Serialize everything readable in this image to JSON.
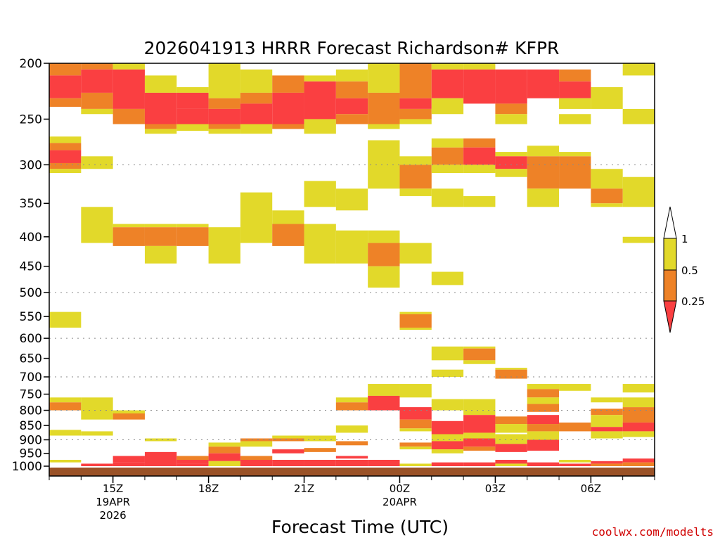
{
  "chart_data": {
    "type": "heatmap",
    "title": "2026041913 HRRR Forecast Richardson# KFPR",
    "xlabel": "Forecast Time (UTC)",
    "ylabel": "",
    "credit": "coolwx.com/modelts",
    "hours": 19,
    "x_ticks": [
      {
        "hour": 2,
        "labels": [
          "15Z",
          "19APR",
          "2026"
        ]
      },
      {
        "hour": 5,
        "labels": [
          "18Z"
        ]
      },
      {
        "hour": 8,
        "labels": [
          "21Z"
        ]
      },
      {
        "hour": 11,
        "labels": [
          "00Z",
          "20APR"
        ]
      },
      {
        "hour": 14,
        "labels": [
          "03Z"
        ]
      },
      {
        "hour": 17,
        "labels": [
          "06Z"
        ]
      }
    ],
    "y_ticks": [
      200,
      250,
      300,
      350,
      400,
      450,
      500,
      550,
      600,
      650,
      700,
      750,
      800,
      850,
      900,
      950,
      1000
    ],
    "gridlines": [
      300,
      500,
      600,
      700,
      800,
      900
    ],
    "ylim": [
      200,
      1025
    ],
    "colorbar": {
      "labels": [
        "1",
        "0.5",
        "0.25"
      ],
      "colors": {
        "yellow": "#e2d92a",
        "orange": "#ee8227",
        "red": "#fa3f41",
        "ground": "#9a5227"
      }
    },
    "columns": [
      [
        [
          200,
          210,
          "o"
        ],
        [
          210,
          230,
          "r"
        ],
        [
          230,
          238,
          "o"
        ],
        [
          268,
          275,
          "y"
        ],
        [
          275,
          283,
          "o"
        ],
        [
          283,
          298,
          "r"
        ],
        [
          298,
          305,
          "o"
        ],
        [
          305,
          310,
          "y"
        ],
        [
          540,
          575,
          "y"
        ],
        [
          760,
          775,
          "y"
        ],
        [
          775,
          800,
          "o"
        ],
        [
          865,
          885,
          "y"
        ],
        [
          975,
          985,
          "y"
        ]
      ],
      [
        [
          200,
          205,
          "o"
        ],
        [
          205,
          225,
          "r"
        ],
        [
          225,
          240,
          "o"
        ],
        [
          240,
          245,
          "y"
        ],
        [
          290,
          305,
          "y"
        ],
        [
          355,
          410,
          "y"
        ],
        [
          760,
          830,
          "y"
        ],
        [
          870,
          885,
          "y"
        ],
        [
          990,
          1000,
          "r"
        ]
      ],
      [
        [
          200,
          205,
          "y"
        ],
        [
          205,
          240,
          "r"
        ],
        [
          240,
          255,
          "o"
        ],
        [
          380,
          385,
          "y"
        ],
        [
          385,
          415,
          "o"
        ],
        [
          800,
          810,
          "y"
        ],
        [
          810,
          830,
          "o"
        ],
        [
          960,
          985,
          "r"
        ],
        [
          985,
          1000,
          "r"
        ]
      ],
      [
        [
          210,
          225,
          "y"
        ],
        [
          225,
          255,
          "r"
        ],
        [
          255,
          260,
          "o"
        ],
        [
          260,
          265,
          "y"
        ],
        [
          380,
          385,
          "y"
        ],
        [
          385,
          415,
          "o"
        ],
        [
          415,
          445,
          "y"
        ],
        [
          895,
          905,
          "y"
        ],
        [
          945,
          1000,
          "r"
        ]
      ],
      [
        [
          220,
          225,
          "y"
        ],
        [
          225,
          240,
          "r"
        ],
        [
          240,
          255,
          "r"
        ],
        [
          255,
          262,
          "y"
        ],
        [
          380,
          385,
          "y"
        ],
        [
          385,
          415,
          "o"
        ],
        [
          960,
          975,
          "o"
        ],
        [
          975,
          990,
          "r"
        ],
        [
          990,
          1000,
          "r"
        ]
      ],
      [
        [
          200,
          230,
          "y"
        ],
        [
          230,
          240,
          "o"
        ],
        [
          240,
          255,
          "r"
        ],
        [
          255,
          260,
          "o"
        ],
        [
          260,
          265,
          "y"
        ],
        [
          385,
          445,
          "y"
        ],
        [
          910,
          925,
          "y"
        ],
        [
          925,
          950,
          "o"
        ],
        [
          950,
          980,
          "r"
        ],
        [
          980,
          1000,
          "y"
        ]
      ],
      [
        [
          205,
          225,
          "y"
        ],
        [
          225,
          235,
          "o"
        ],
        [
          235,
          255,
          "r"
        ],
        [
          255,
          265,
          "y"
        ],
        [
          335,
          410,
          "y"
        ],
        [
          895,
          905,
          "o"
        ],
        [
          905,
          925,
          "y"
        ],
        [
          960,
          975,
          "o"
        ],
        [
          975,
          1000,
          "r"
        ]
      ],
      [
        [
          210,
          225,
          "o"
        ],
        [
          225,
          255,
          "r"
        ],
        [
          255,
          260,
          "o"
        ],
        [
          360,
          380,
          "y"
        ],
        [
          380,
          415,
          "o"
        ],
        [
          885,
          895,
          "y"
        ],
        [
          895,
          905,
          "o"
        ],
        [
          935,
          950,
          "r"
        ],
        [
          975,
          1000,
          "r"
        ]
      ],
      [
        [
          210,
          215,
          "y"
        ],
        [
          215,
          250,
          "r"
        ],
        [
          250,
          265,
          "y"
        ],
        [
          320,
          355,
          "y"
        ],
        [
          380,
          445,
          "y"
        ],
        [
          885,
          905,
          "y"
        ],
        [
          930,
          945,
          "o"
        ],
        [
          975,
          1000,
          "r"
        ]
      ],
      [
        [
          205,
          215,
          "y"
        ],
        [
          215,
          230,
          "o"
        ],
        [
          230,
          245,
          "r"
        ],
        [
          245,
          255,
          "o"
        ],
        [
          330,
          360,
          "y"
        ],
        [
          390,
          445,
          "y"
        ],
        [
          760,
          775,
          "y"
        ],
        [
          775,
          800,
          "o"
        ],
        [
          850,
          875,
          "y"
        ],
        [
          905,
          920,
          "o"
        ],
        [
          960,
          970,
          "r"
        ],
        [
          975,
          1000,
          "r"
        ]
      ],
      [
        [
          200,
          225,
          "y"
        ],
        [
          225,
          255,
          "o"
        ],
        [
          255,
          260,
          "y"
        ],
        [
          272,
          330,
          "y"
        ],
        [
          390,
          410,
          "y"
        ],
        [
          410,
          450,
          "o"
        ],
        [
          450,
          490,
          "y"
        ],
        [
          720,
          755,
          "y"
        ],
        [
          755,
          800,
          "r"
        ],
        [
          975,
          1000,
          "r"
        ]
      ],
      [
        [
          200,
          230,
          "o"
        ],
        [
          230,
          240,
          "r"
        ],
        [
          240,
          250,
          "o"
        ],
        [
          250,
          255,
          "y"
        ],
        [
          290,
          300,
          "y"
        ],
        [
          300,
          330,
          "o"
        ],
        [
          330,
          340,
          "y"
        ],
        [
          410,
          445,
          "y"
        ],
        [
          540,
          545,
          "y"
        ],
        [
          545,
          575,
          "o"
        ],
        [
          575,
          580,
          "y"
        ],
        [
          720,
          760,
          "y"
        ],
        [
          790,
          830,
          "r"
        ],
        [
          830,
          860,
          "o"
        ],
        [
          860,
          870,
          "y"
        ],
        [
          910,
          925,
          "o"
        ],
        [
          925,
          935,
          "y"
        ],
        [
          990,
          1000,
          "y"
        ]
      ],
      [
        [
          200,
          205,
          "y"
        ],
        [
          205,
          230,
          "r"
        ],
        [
          230,
          245,
          "y"
        ],
        [
          270,
          280,
          "y"
        ],
        [
          280,
          300,
          "o"
        ],
        [
          300,
          310,
          "y"
        ],
        [
          330,
          355,
          "y"
        ],
        [
          460,
          485,
          "y"
        ],
        [
          620,
          655,
          "y"
        ],
        [
          680,
          700,
          "y"
        ],
        [
          765,
          800,
          "y"
        ],
        [
          835,
          880,
          "r"
        ],
        [
          880,
          905,
          "y"
        ],
        [
          905,
          935,
          "r"
        ],
        [
          935,
          950,
          "y"
        ],
        [
          985,
          1000,
          "r"
        ]
      ],
      [
        [
          200,
          205,
          "y"
        ],
        [
          205,
          235,
          "r"
        ],
        [
          270,
          280,
          "o"
        ],
        [
          280,
          300,
          "r"
        ],
        [
          300,
          310,
          "y"
        ],
        [
          340,
          355,
          "y"
        ],
        [
          620,
          625,
          "y"
        ],
        [
          625,
          655,
          "o"
        ],
        [
          655,
          665,
          "y"
        ],
        [
          765,
          800,
          "y"
        ],
        [
          800,
          815,
          "y"
        ],
        [
          815,
          875,
          "r"
        ],
        [
          875,
          895,
          "y"
        ],
        [
          895,
          925,
          "r"
        ],
        [
          925,
          940,
          "o"
        ],
        [
          985,
          1000,
          "r"
        ]
      ],
      [
        [
          205,
          235,
          "r"
        ],
        [
          235,
          245,
          "o"
        ],
        [
          245,
          255,
          "y"
        ],
        [
          285,
          290,
          "y"
        ],
        [
          290,
          305,
          "r"
        ],
        [
          305,
          315,
          "y"
        ],
        [
          675,
          680,
          "y"
        ],
        [
          680,
          705,
          "o"
        ],
        [
          820,
          845,
          "o"
        ],
        [
          845,
          875,
          "y"
        ],
        [
          880,
          915,
          "y"
        ],
        [
          915,
          945,
          "r"
        ],
        [
          975,
          990,
          "r"
        ],
        [
          990,
          1000,
          "y"
        ]
      ],
      [
        [
          205,
          230,
          "r"
        ],
        [
          278,
          290,
          "y"
        ],
        [
          290,
          330,
          "o"
        ],
        [
          330,
          355,
          "y"
        ],
        [
          720,
          735,
          "y"
        ],
        [
          735,
          760,
          "o"
        ],
        [
          760,
          780,
          "y"
        ],
        [
          780,
          805,
          "o"
        ],
        [
          815,
          845,
          "r"
        ],
        [
          845,
          870,
          "o"
        ],
        [
          870,
          900,
          "y"
        ],
        [
          900,
          940,
          "r"
        ],
        [
          985,
          1000,
          "r"
        ]
      ],
      [
        [
          205,
          215,
          "o"
        ],
        [
          215,
          230,
          "r"
        ],
        [
          230,
          240,
          "y"
        ],
        [
          245,
          255,
          "y"
        ],
        [
          285,
          290,
          "y"
        ],
        [
          290,
          330,
          "o"
        ],
        [
          720,
          740,
          "y"
        ],
        [
          840,
          870,
          "o"
        ],
        [
          975,
          985,
          "y"
        ],
        [
          990,
          1000,
          "r"
        ]
      ],
      [
        [
          220,
          240,
          "y"
        ],
        [
          305,
          330,
          "y"
        ],
        [
          330,
          350,
          "o"
        ],
        [
          350,
          355,
          "y"
        ],
        [
          760,
          775,
          "y"
        ],
        [
          795,
          815,
          "o"
        ],
        [
          815,
          855,
          "y"
        ],
        [
          855,
          870,
          "r"
        ],
        [
          870,
          895,
          "y"
        ],
        [
          980,
          990,
          "r"
        ],
        [
          990,
          1000,
          "o"
        ]
      ],
      [
        [
          200,
          210,
          "y"
        ],
        [
          240,
          255,
          "y"
        ],
        [
          315,
          355,
          "y"
        ],
        [
          400,
          410,
          "y"
        ],
        [
          720,
          745,
          "y"
        ],
        [
          760,
          790,
          "y"
        ],
        [
          790,
          840,
          "o"
        ],
        [
          840,
          870,
          "r"
        ],
        [
          870,
          890,
          "y"
        ],
        [
          970,
          985,
          "r"
        ],
        [
          985,
          1000,
          "o"
        ]
      ]
    ]
  }
}
